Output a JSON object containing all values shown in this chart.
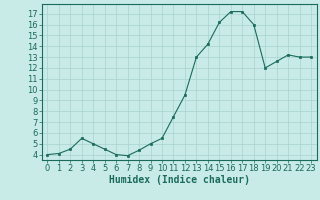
{
  "x": [
    0,
    1,
    2,
    3,
    4,
    5,
    6,
    7,
    8,
    9,
    10,
    11,
    12,
    13,
    14,
    15,
    16,
    17,
    18,
    19,
    20,
    21,
    22,
    23
  ],
  "y": [
    4.0,
    4.1,
    4.5,
    5.5,
    5.0,
    4.5,
    4.0,
    3.9,
    4.4,
    5.0,
    5.5,
    7.5,
    9.5,
    13.0,
    14.2,
    16.2,
    17.2,
    17.2,
    16.0,
    12.0,
    12.6,
    13.2,
    13.0,
    13.0
  ],
  "xlabel": "Humidex (Indice chaleur)",
  "ylim": [
    3.5,
    17.9
  ],
  "xlim": [
    -0.5,
    23.5
  ],
  "yticks": [
    4,
    5,
    6,
    7,
    8,
    9,
    10,
    11,
    12,
    13,
    14,
    15,
    16,
    17
  ],
  "xticks": [
    0,
    1,
    2,
    3,
    4,
    5,
    6,
    7,
    8,
    9,
    10,
    11,
    12,
    13,
    14,
    15,
    16,
    17,
    18,
    19,
    20,
    21,
    22,
    23
  ],
  "line_color": "#1a6b5a",
  "marker_color": "#1a6b5a",
  "bg_color": "#c8ebe8",
  "grid_color": "#a8d4ce",
  "xlabel_fontsize": 7,
  "tick_fontsize": 6
}
